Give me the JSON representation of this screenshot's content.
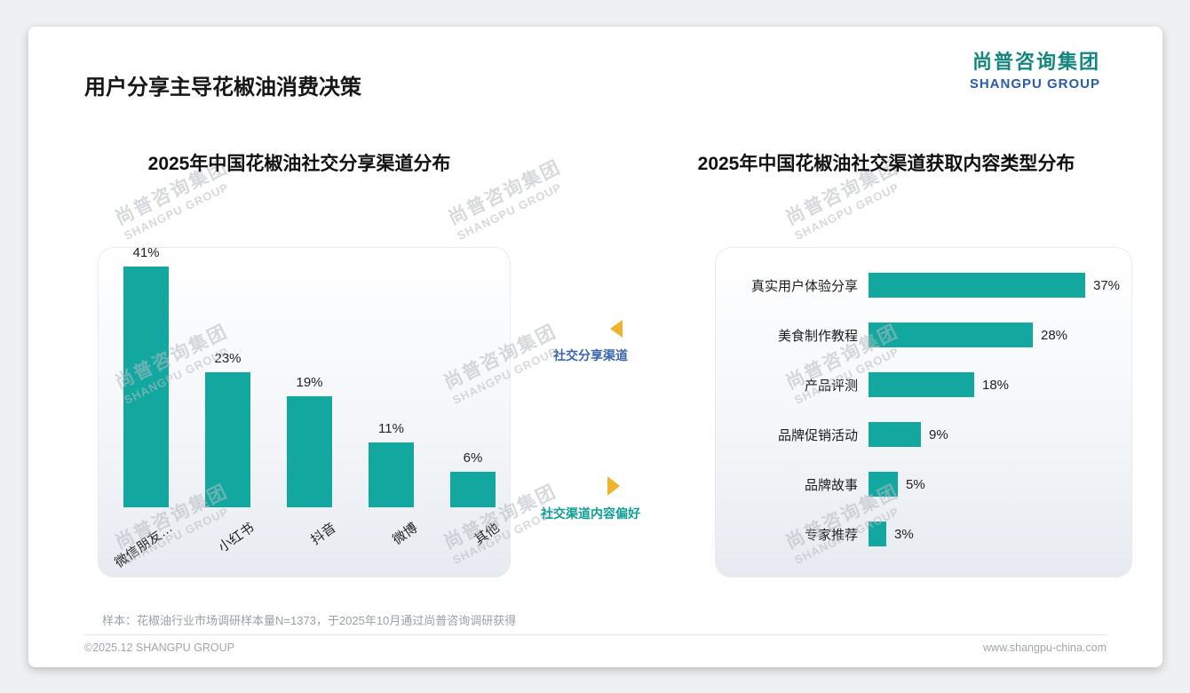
{
  "page": {
    "title": "用户分享主导花椒油消费决策",
    "logo": {
      "cn": "尚普咨询集团",
      "en": "SHANGPU GROUP"
    },
    "watermark": {
      "cn": "尚普咨询集团",
      "en": "SHANGPU GROUP"
    },
    "annotations": [
      {
        "label": "社交分享渠道",
        "direction": "left"
      },
      {
        "label": "社交渠道内容偏好",
        "direction": "right"
      }
    ],
    "footnote": "样本：花椒油行业市场调研样本量N=1373，于2025年10月通过尚普咨询调研获得",
    "footer": {
      "left": "©2025.12 SHANGPU GROUP",
      "right": "www.shangpu-china.com"
    }
  },
  "colors": {
    "bar": "#12A8A0",
    "arrow_yellow": "#F0B32E",
    "annotation_blue": "#3A66AD",
    "annotation_teal": "#0E9E96"
  },
  "chart_data": [
    {
      "type": "bar",
      "orientation": "vertical",
      "title": "2025年中国花椒油社交分享渠道分布",
      "categories": [
        "微信朋友…",
        "小红书",
        "抖音",
        "微博",
        "其他"
      ],
      "values": [
        41,
        23,
        19,
        11,
        6
      ],
      "value_labels": [
        "41%",
        "23%",
        "19%",
        "11%",
        "6%"
      ],
      "unit": "%",
      "bar_color": "#12A8A0",
      "ylim": [
        0,
        45
      ],
      "grid": false,
      "legend": false
    },
    {
      "type": "bar",
      "orientation": "horizontal",
      "title": "2025年中国花椒油社交渠道获取内容类型分布",
      "categories": [
        "真实用户体验分享",
        "美食制作教程",
        "产品评测",
        "品牌促销活动",
        "品牌故事",
        "专家推荐"
      ],
      "values": [
        37,
        28,
        18,
        9,
        5,
        3
      ],
      "value_labels": [
        "37%",
        "28%",
        "18%",
        "9%",
        "5%",
        "3%"
      ],
      "unit": "%",
      "bar_color": "#12A8A0",
      "xlim": [
        0,
        40
      ],
      "grid": false,
      "legend": false
    }
  ]
}
